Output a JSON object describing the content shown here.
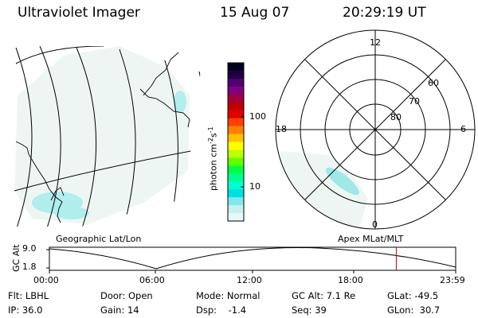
{
  "header": {
    "title": "Ultraviolet Imager",
    "date": "15 Aug 07",
    "time": "20:29:19 UT"
  },
  "colorbar": {
    "label": "photon cm",
    "exp1": "-2",
    "mid": "s",
    "exp2": "-1",
    "ticks": [
      "100",
      "10"
    ],
    "colors": [
      "#000020",
      "#200040",
      "#500070",
      "#800080",
      "#a00040",
      "#c00000",
      "#e00000",
      "#ff4000",
      "#ff8000",
      "#ffc000",
      "#ffff00",
      "#c0ff00",
      "#60ff00",
      "#00ff40",
      "#00ff90",
      "#00ffd0",
      "#00e0e0",
      "#80e8e8",
      "#c8f0f0",
      "#e8f8f8"
    ]
  },
  "left_panel": {
    "label": "Geographic Lat/Lon"
  },
  "right_panel": {
    "label": "Apex MLat/MLT",
    "mlt_labels": {
      "top": "12",
      "left": "18",
      "right": "6",
      "bottom": "0"
    },
    "lat_labels": [
      "60",
      "70",
      "80"
    ]
  },
  "altitude_plot": {
    "ylabel": "GC Alt",
    "yticks": [
      "9.0",
      "1.8"
    ],
    "xticks": [
      "00:00",
      "06:00",
      "12:00",
      "18:00",
      "23:59"
    ],
    "marker_time_hours": 20.49
  },
  "footer": {
    "filter": "Flt: LBHL",
    "ip": "IP: 36.0",
    "door": "Door: Open",
    "gain": "Gain: 14",
    "mode": "Mode: Normal",
    "dsp": "Dsp:    -1.4",
    "gc_alt": "GC Alt: 7.1 Re",
    "seq": "Seq: 39",
    "glat": "GLat: -49.5",
    "glon": "GLon:  30.7"
  }
}
